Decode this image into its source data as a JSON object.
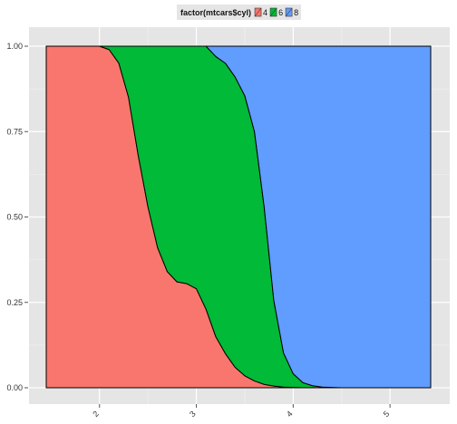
{
  "chart_data": {
    "type": "area",
    "stacked_fill": true,
    "title": "",
    "xlabel": "",
    "ylabel": "",
    "xlim": [
      1.45,
      5.42
    ],
    "ylim": [
      0,
      1
    ],
    "grid": true,
    "legend": {
      "title": "factor(mtcars$cyl)",
      "placement": "top",
      "entries": [
        {
          "label": "4",
          "color": "#F8766D"
        },
        {
          "label": "6",
          "color": "#00BA38"
        },
        {
          "label": "8",
          "color": "#619CFF"
        }
      ]
    },
    "x_ticks": [
      {
        "value": 2,
        "label": "2"
      },
      {
        "value": 3,
        "label": "3"
      },
      {
        "value": 4,
        "label": "4"
      },
      {
        "value": 5,
        "label": "5"
      }
    ],
    "y_ticks": [
      {
        "value": 0.0,
        "label": "0.00"
      },
      {
        "value": 0.25,
        "label": "0.25"
      },
      {
        "value": 0.5,
        "label": "0.50"
      },
      {
        "value": 0.75,
        "label": "0.75"
      },
      {
        "value": 1.0,
        "label": "1.00"
      }
    ],
    "x": [
      1.45,
      1.6,
      1.8,
      2.0,
      2.1,
      2.2,
      2.3,
      2.4,
      2.5,
      2.6,
      2.7,
      2.8,
      2.9,
      3.0,
      3.1,
      3.2,
      3.3,
      3.4,
      3.5,
      3.6,
      3.7,
      3.8,
      3.9,
      4.0,
      4.1,
      4.2,
      4.3,
      4.4,
      4.5,
      4.6,
      4.8,
      5.0,
      5.2,
      5.42
    ],
    "series": [
      {
        "name": "4",
        "color": "#F8766D",
        "values": [
          1.0,
          1.0,
          1.0,
          1.0,
          0.99,
          0.95,
          0.85,
          0.68,
          0.53,
          0.41,
          0.34,
          0.31,
          0.305,
          0.29,
          0.23,
          0.15,
          0.1,
          0.06,
          0.035,
          0.02,
          0.01,
          0.005,
          0.002,
          0.001,
          0,
          0,
          0,
          0,
          0,
          0,
          0,
          0,
          0,
          0
        ]
      },
      {
        "name": "6",
        "color": "#00BA38",
        "values": [
          0,
          0,
          0,
          0,
          0.01,
          0.05,
          0.15,
          0.32,
          0.47,
          0.59,
          0.66,
          0.69,
          0.695,
          0.71,
          0.77,
          0.82,
          0.85,
          0.85,
          0.82,
          0.73,
          0.52,
          0.25,
          0.1,
          0.04,
          0.015,
          0.006,
          0.002,
          0.001,
          0,
          0,
          0,
          0,
          0,
          0
        ]
      },
      {
        "name": "8",
        "color": "#619CFF",
        "values": [
          0,
          0,
          0,
          0,
          0,
          0,
          0,
          0,
          0,
          0,
          0,
          0,
          0,
          0,
          0,
          0.03,
          0.05,
          0.09,
          0.145,
          0.25,
          0.47,
          0.745,
          0.898,
          0.959,
          0.985,
          0.994,
          0.998,
          0.999,
          1.0,
          1.0,
          1.0,
          1.0,
          1.0,
          1.0
        ]
      }
    ]
  }
}
